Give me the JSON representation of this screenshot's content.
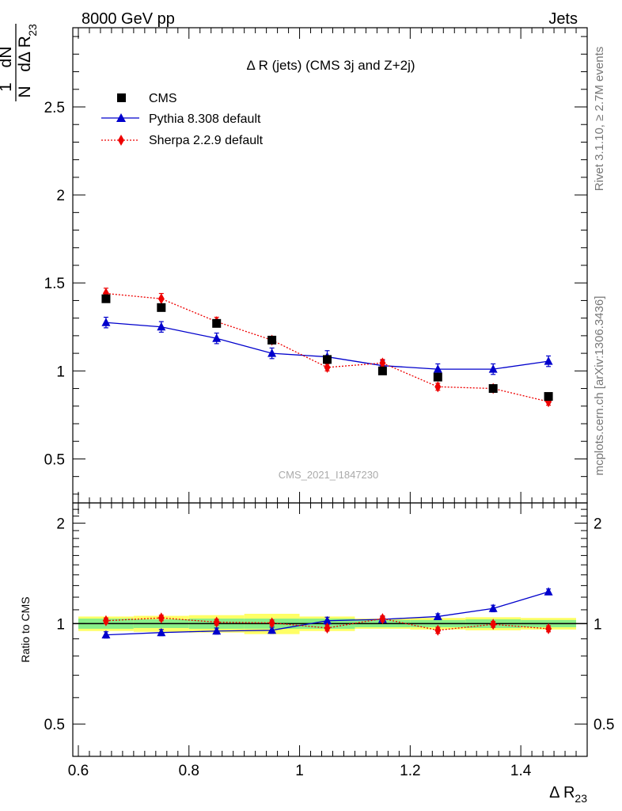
{
  "header": {
    "left": "8000 GeV pp",
    "right": "Jets"
  },
  "side_labels": {
    "top": "Rivet 3.1.10, ≥ 2.7M events",
    "bottom": "mcplots.cern.ch [arXiv:1306.3436]"
  },
  "colors": {
    "data": "#000000",
    "pythia": "#0000cc",
    "sherpa": "#ee0000",
    "band_inner": "#88ee88",
    "band_outer": "#ffff66"
  },
  "chart_data": [
    {
      "type": "scatter",
      "title": "Δ R (jets) (CMS 3j and Z+2j)",
      "ylabel": "1/N dN/dΔ R23",
      "watermark": "CMS_2021_I1847230",
      "xlim": [
        0.59,
        1.52
      ],
      "ylim": [
        0.25,
        2.95
      ],
      "y_ticks": [
        "0.5",
        "1",
        "1.5",
        "2",
        "2.5"
      ],
      "legend_position": "top-left",
      "x": [
        0.65,
        0.75,
        0.85,
        0.95,
        1.05,
        1.15,
        1.25,
        1.35,
        1.45
      ],
      "series": [
        {
          "name": "CMS",
          "style": "square",
          "values": [
            1.41,
            1.36,
            1.27,
            1.175,
            1.065,
            1.0,
            0.965,
            0.9,
            0.855
          ]
        },
        {
          "name": "Pythia 8.308 default",
          "style": "triangle-solid",
          "values": [
            1.275,
            1.25,
            1.185,
            1.1,
            1.08,
            1.03,
            1.01,
            1.01,
            1.055
          ],
          "errors": [
            0.03,
            0.03,
            0.03,
            0.03,
            0.035,
            0.03,
            0.03,
            0.03,
            0.03
          ]
        },
        {
          "name": "Sherpa 2.2.9 default",
          "style": "diamond-dotted",
          "values": [
            1.44,
            1.41,
            1.28,
            1.175,
            1.02,
            1.045,
            0.91,
            0.9,
            0.825
          ],
          "errors": [
            0.03,
            0.03,
            0.025,
            0.02,
            0.02,
            0.02,
            0.02,
            0.02,
            0.02
          ]
        }
      ]
    },
    {
      "type": "scatter",
      "ylabel": "Ratio to CMS",
      "xlabel": "Δ R23",
      "xlim": [
        0.59,
        1.52
      ],
      "ylim": [
        0.4,
        2.3
      ],
      "y_ticks": [
        "0.5",
        "1",
        "2"
      ],
      "x_ticks": [
        "0.6",
        "0.8",
        "1",
        "1.2",
        "1.4"
      ],
      "x": [
        0.65,
        0.75,
        0.85,
        0.95,
        1.05,
        1.15,
        1.25,
        1.35,
        1.45
      ],
      "data_band_inner": [
        0.035,
        0.03,
        0.035,
        0.035,
        0.035,
        0.025,
        0.025,
        0.03,
        0.025
      ],
      "data_band_outer": [
        0.05,
        0.055,
        0.06,
        0.07,
        0.05,
        0.035,
        0.04,
        0.045,
        0.04
      ],
      "series": [
        {
          "name": "Pythia 8.308 default",
          "style": "triangle-solid",
          "values": [
            0.925,
            0.94,
            0.95,
            0.955,
            1.02,
            1.03,
            1.05,
            1.11,
            1.245
          ],
          "errors": [
            0.02,
            0.02,
            0.02,
            0.02,
            0.025,
            0.02,
            0.02,
            0.025,
            0.025
          ]
        },
        {
          "name": "Sherpa 2.2.9 default",
          "style": "diamond-dotted",
          "values": [
            1.02,
            1.04,
            1.01,
            1.005,
            0.97,
            1.035,
            0.955,
            0.995,
            0.965
          ],
          "errors": [
            0.02,
            0.02,
            0.02,
            0.02,
            0.02,
            0.02,
            0.02,
            0.02,
            0.02
          ]
        }
      ]
    }
  ]
}
